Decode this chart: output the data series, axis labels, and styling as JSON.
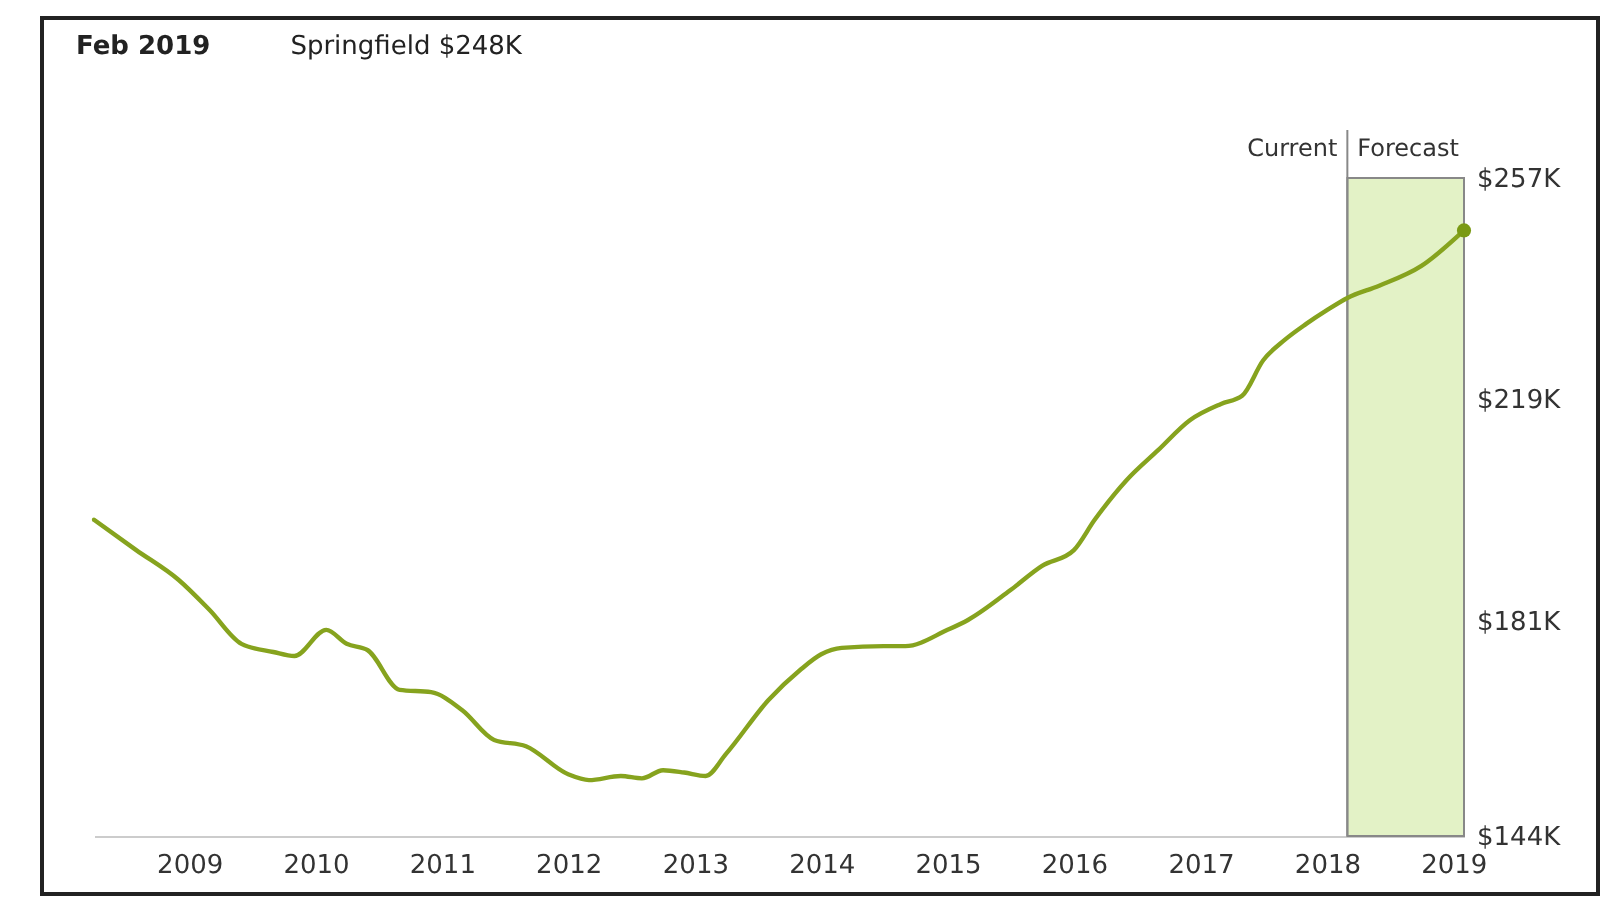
{
  "chart_data": {
    "type": "line",
    "title": "Feb 2019",
    "subtitle": "Springfield $248K",
    "xlim": [
      "2008-04",
      "2019-02"
    ],
    "xticks": [
      "2009",
      "2010",
      "2011",
      "2012",
      "2013",
      "2014",
      "2015",
      "2016",
      "2017",
      "2018",
      "2019"
    ],
    "ylim": [
      144,
      257
    ],
    "yticks": [
      {
        "value": 144,
        "label": "$144K"
      },
      {
        "value": 181,
        "label": "$181K"
      },
      {
        "value": 219,
        "label": "$219K"
      },
      {
        "value": 257,
        "label": "$257K"
      }
    ],
    "grid": false,
    "ref_lines": [
      {
        "axis": "x",
        "value": "2018-03",
        "label": "Current",
        "color": "#888888"
      }
    ],
    "bands": [
      {
        "axis": "x",
        "from": "2018-03",
        "to": "2019-02",
        "label": "Forecast",
        "color": "#e3f2c6"
      }
    ],
    "series": [
      {
        "color": "#86a31e",
        "x": [
          "2008-04",
          "2008-08",
          "2008-12",
          "2009-03",
          "2009-06",
          "2009-09",
          "2009-11",
          "2010-02",
          "2010-04",
          "2010-06",
          "2010-09",
          "2010-12",
          "2011-03",
          "2011-06",
          "2011-09",
          "2012-01",
          "2012-03",
          "2012-06",
          "2012-08",
          "2012-10",
          "2012-12",
          "2013-02",
          "2013-04",
          "2013-08",
          "2013-11",
          "2014-01",
          "2014-03",
          "2014-07",
          "2014-09",
          "2015-01",
          "2015-03",
          "2015-07",
          "2015-10",
          "2016-01",
          "2016-03",
          "2016-06",
          "2016-09",
          "2016-12",
          "2017-03",
          "2017-05",
          "2017-07",
          "2017-09",
          "2017-11",
          "2018-01",
          "2018-03",
          "2018-06",
          "2018-10",
          "2019-02"
        ],
        "values": [
          198.3,
          193.1,
          188.0,
          182.8,
          177.0,
          175.6,
          174.9,
          179.4,
          177.0,
          175.9,
          169.1,
          168.7,
          165.6,
          160.5,
          159.4,
          154.6,
          153.6,
          154.3,
          153.9,
          155.3,
          154.9,
          154.3,
          158.1,
          167.3,
          172.5,
          175.2,
          176.3,
          176.6,
          176.6,
          179.4,
          181.1,
          186.2,
          190.4,
          193.1,
          198.3,
          205.1,
          210.3,
          215.4,
          218.2,
          219.6,
          225.7,
          229.2,
          231.9,
          234.3,
          236.4,
          238.5,
          241.9,
          248
        ]
      },
      {
        "type": "scatter",
        "color": "#7a9a14",
        "x": [
          "2019-02"
        ],
        "values": [
          248
        ]
      }
    ]
  }
}
